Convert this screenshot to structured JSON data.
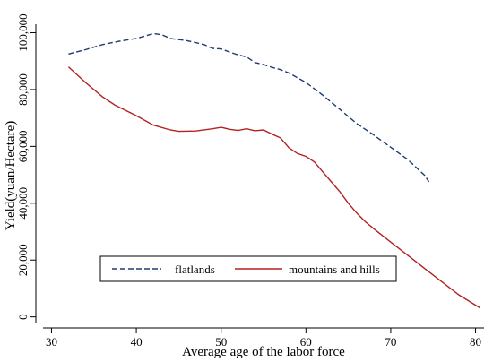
{
  "chart_data": {
    "type": "line",
    "xlabel": "Average age of the labor force",
    "ylabel": "Yield(yuan/Hectare)",
    "xlim": [
      29,
      81
    ],
    "ylim": [
      -2000,
      103000
    ],
    "xticks": [
      {
        "value": 30,
        "label": "30"
      },
      {
        "value": 40,
        "label": "40"
      },
      {
        "value": 50,
        "label": "50"
      },
      {
        "value": 60,
        "label": "60"
      },
      {
        "value": 70,
        "label": "70"
      },
      {
        "value": 80,
        "label": "80"
      }
    ],
    "yticks": [
      {
        "value": 0,
        "label": "0"
      },
      {
        "value": 20000,
        "label": "20,000"
      },
      {
        "value": 40000,
        "label": "40,000"
      },
      {
        "value": 60000,
        "label": "60,000"
      },
      {
        "value": 80000,
        "label": "80,000"
      },
      {
        "value": 100000,
        "label": "100,000"
      }
    ],
    "legend_position": "bottom-inside",
    "series": [
      {
        "name": "flatlands",
        "color": "#1f3c6e",
        "style": "dashed",
        "points": [
          [
            32,
            92500
          ],
          [
            34,
            94000
          ],
          [
            36,
            95800
          ],
          [
            38,
            97000
          ],
          [
            40,
            98000
          ],
          [
            41,
            98800
          ],
          [
            42,
            99700
          ],
          [
            43,
            99300
          ],
          [
            44,
            98000
          ],
          [
            46,
            97200
          ],
          [
            48,
            95800
          ],
          [
            49,
            94500
          ],
          [
            50,
            94300
          ],
          [
            51,
            93200
          ],
          [
            52,
            92200
          ],
          [
            53,
            91500
          ],
          [
            54,
            89500
          ],
          [
            55,
            88800
          ],
          [
            56,
            87800
          ],
          [
            57,
            87000
          ],
          [
            58,
            85800
          ],
          [
            60,
            82500
          ],
          [
            62,
            78000
          ],
          [
            63,
            75500
          ],
          [
            64,
            73000
          ],
          [
            66,
            68000
          ],
          [
            68,
            64000
          ],
          [
            70,
            59700
          ],
          [
            72,
            55400
          ],
          [
            74,
            49800
          ],
          [
            74.5,
            47500
          ]
        ]
      },
      {
        "name": "mountains and hills",
        "color": "#b22222",
        "style": "solid",
        "points": [
          [
            32,
            88000
          ],
          [
            34,
            82500
          ],
          [
            36,
            77500
          ],
          [
            37.5,
            74500
          ],
          [
            40,
            70800
          ],
          [
            42,
            67500
          ],
          [
            44,
            65800
          ],
          [
            45,
            65300
          ],
          [
            47,
            65400
          ],
          [
            49,
            66200
          ],
          [
            50,
            66700
          ],
          [
            51,
            66000
          ],
          [
            52,
            65600
          ],
          [
            53,
            66200
          ],
          [
            54,
            65500
          ],
          [
            55,
            65800
          ],
          [
            56,
            64300
          ],
          [
            57,
            63000
          ],
          [
            58,
            59500
          ],
          [
            59,
            57500
          ],
          [
            60,
            56500
          ],
          [
            61,
            54500
          ],
          [
            62,
            51000
          ],
          [
            63,
            47500
          ],
          [
            64,
            44000
          ],
          [
            65,
            40000
          ],
          [
            66,
            36500
          ],
          [
            67,
            33500
          ],
          [
            68,
            31000
          ],
          [
            70,
            26300
          ],
          [
            72,
            21700
          ],
          [
            74,
            17000
          ],
          [
            76,
            12400
          ],
          [
            78,
            7800
          ],
          [
            80.5,
            3200
          ]
        ]
      }
    ]
  }
}
